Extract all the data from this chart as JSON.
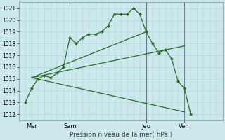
{
  "bg_color": "#cde8ed",
  "grid_color": "#b0d8df",
  "line_color": "#2d6a2d",
  "vline_color": "#5a7a7a",
  "xlabel": "Pression niveau de la mer( hPa )",
  "ylim": [
    1011.5,
    1021.5
  ],
  "yticks": [
    1012,
    1013,
    1014,
    1015,
    1016,
    1017,
    1018,
    1019,
    1020,
    1021
  ],
  "xlim": [
    0,
    16
  ],
  "xtick_labels": [
    "Mer",
    "Sam",
    "Jeu",
    "Ven"
  ],
  "xtick_positions": [
    1,
    4,
    10,
    13
  ],
  "vline_positions": [
    1,
    4,
    10,
    13
  ],
  "series0": {
    "x": [
      0.5,
      1.0,
      1.5,
      2.0,
      2.5,
      3.0,
      3.5,
      4.0,
      4.5,
      5.0,
      5.5,
      6.0,
      6.5,
      7.0,
      7.5,
      8.0,
      8.5,
      9.0,
      9.5,
      10.0,
      10.5,
      11.0,
      11.5,
      12.0,
      12.5,
      13.0,
      13.5
    ],
    "y": [
      1013.0,
      1014.2,
      1015.0,
      1015.3,
      1015.1,
      1015.5,
      1016.0,
      1018.5,
      1018.0,
      1018.5,
      1018.8,
      1018.8,
      1019.0,
      1019.5,
      1020.5,
      1020.5,
      1020.5,
      1021.0,
      1020.5,
      1019.0,
      1018.0,
      1017.2,
      1017.5,
      1016.7,
      1014.8,
      1014.2,
      1012.0
    ]
  },
  "fan_lines": [
    {
      "x": [
        1.0,
        10.0
      ],
      "y": [
        1015.1,
        1019.0
      ]
    },
    {
      "x": [
        1.0,
        13.0
      ],
      "y": [
        1015.1,
        1017.8
      ]
    },
    {
      "x": [
        1.0,
        13.0
      ],
      "y": [
        1015.1,
        1012.2
      ]
    }
  ]
}
